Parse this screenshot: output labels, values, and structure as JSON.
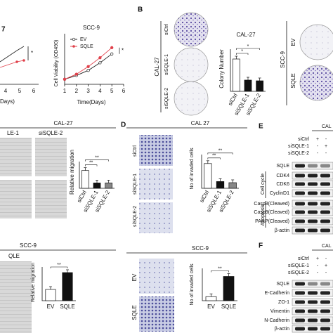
{
  "panel_a": {
    "left_fragment": {
      "title": "7",
      "xticks": [
        "4",
        "5",
        "6"
      ],
      "x_label": "Days)",
      "star": "*"
    },
    "scc9_chart": {
      "type": "line",
      "title": "SCC-9",
      "y_label": "Cell Viability (OD490)",
      "x_label": "Time(Days)",
      "x": [
        1,
        2,
        3,
        4,
        5
      ],
      "xlim": [
        1,
        6
      ],
      "xticks": [
        1,
        2,
        3,
        4,
        5,
        6
      ],
      "ylim": [
        0,
        2
      ],
      "series": [
        {
          "name": "EV",
          "color": "#222222",
          "values": [
            0.2,
            0.35,
            0.55,
            0.85,
            1.2
          ]
        },
        {
          "name": "SQLE",
          "color": "#e0404a",
          "values": [
            0.2,
            0.4,
            0.7,
            1.05,
            1.45
          ]
        }
      ],
      "star": "*"
    }
  },
  "panel_b": {
    "label": "B",
    "cell_line": "CAL-27",
    "groups": [
      "siCtrl",
      "siSQLE-1",
      "siSQLE-2"
    ],
    "colony_chart": {
      "type": "bar",
      "title": "CAL-27",
      "y_label": "Colony Number",
      "categories": [
        "siCtrl",
        "siSQLE-1",
        "siSQLE-2"
      ],
      "values": [
        230,
        80,
        75
      ],
      "colors": [
        "#ffffff",
        "#111111",
        "#111111"
      ],
      "ylim": [
        0,
        300
      ],
      "stars": [
        "*",
        "*"
      ]
    },
    "right": {
      "cell_line": "SCC-9",
      "groups": [
        "EV",
        "SQLE"
      ]
    }
  },
  "panel_c": {
    "title": "CAL-27",
    "col_fragments": [
      "LE-1",
      "siSQLE-2"
    ],
    "chart": {
      "type": "bar",
      "y_label": "Relative migration",
      "categories": [
        "siCtrl",
        "siSQLE-1",
        "siSQLE-2"
      ],
      "values": [
        1.0,
        0.3,
        0.3
      ],
      "colors": [
        "#ffffff",
        "#111111",
        "#888888"
      ],
      "ylim": [
        0,
        1.5
      ],
      "stars": [
        "**",
        "**"
      ]
    },
    "scc9": {
      "title": "SCC-9",
      "col_fragment": "QLE",
      "chart": {
        "type": "bar",
        "y_label": "Relative migration",
        "categories": [
          "EV",
          "SQLE"
        ],
        "values": [
          1.0,
          2.5
        ],
        "colors": [
          "#ffffff",
          "#111111"
        ],
        "ylim": [
          0,
          3
        ],
        "stars": [
          "**"
        ]
      }
    }
  },
  "panel_d": {
    "label": "D",
    "title": "CAL 27",
    "groups": [
      "siCtrl",
      "siSQLE-1",
      "siSQLE-2"
    ],
    "chart": {
      "type": "bar",
      "y_label": "No of invaded cells",
      "categories": [
        "siCtrl",
        "siSQLE-1",
        "siSQLE-2"
      ],
      "values": [
        440,
        120,
        100
      ],
      "colors": [
        "#ffffff",
        "#111111",
        "#888888"
      ],
      "ylim": [
        0,
        600
      ],
      "stars": [
        "**",
        "**"
      ]
    },
    "scc9": {
      "title": "SCC-9",
      "groups": [
        "EV",
        "SQLE"
      ],
      "chart": {
        "type": "bar",
        "y_label": "No of invaded cells",
        "categories": [
          "EV",
          "SQLE"
        ],
        "values": [
          100,
          600
        ],
        "colors": [
          "#ffffff",
          "#111111"
        ],
        "ylim": [
          0,
          800
        ],
        "stars": [
          "**"
        ]
      }
    }
  },
  "panel_e": {
    "label": "E",
    "cell_line": "CAL",
    "treatments": [
      {
        "name": "siCtrl",
        "signs": [
          "+",
          "-"
        ]
      },
      {
        "name": "siSQLE-1",
        "signs": [
          "-",
          "+"
        ]
      },
      {
        "name": "siSQLE-2",
        "signs": [
          "-",
          "-"
        ]
      }
    ],
    "rows": [
      "SQLE",
      "CDK4",
      "CDK6",
      "CyclinD1",
      "Casp3(Cleaved)",
      "Casp9(Cleaved)",
      "PARP(Cleaved)",
      "β-actin"
    ],
    "groups": [
      "Cell cycle",
      "Apoptosis"
    ]
  },
  "panel_f": {
    "label": "F",
    "cell_line": "CAL",
    "treatments": [
      {
        "name": "siCtrl",
        "signs": [
          "+",
          "-"
        ]
      },
      {
        "name": "siSQLE-1",
        "signs": [
          "-",
          "+"
        ]
      },
      {
        "name": "siSQLE-2",
        "signs": [
          "-",
          "-"
        ]
      }
    ],
    "rows": [
      "SQLE",
      "E-Cadherin",
      "ZO-1",
      "Vimentin",
      "N-Cadherin",
      "β-actin"
    ]
  }
}
